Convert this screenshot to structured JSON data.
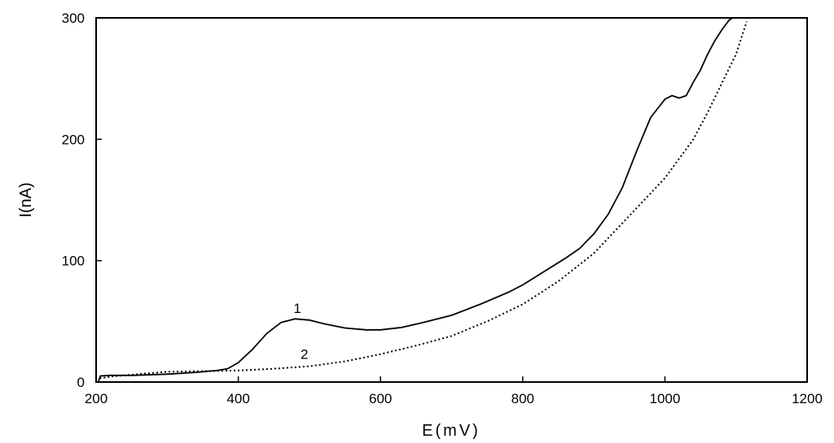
{
  "chart_data": {
    "type": "line",
    "xlabel": "E(mV)",
    "ylabel": "I(nA)",
    "xlim": [
      200,
      1200
    ],
    "ylim": [
      0,
      300
    ],
    "x_ticks": [
      200,
      400,
      600,
      800,
      1000,
      1200
    ],
    "y_ticks": [
      0,
      100,
      200,
      300
    ],
    "grid": false,
    "series": [
      {
        "name": "1",
        "style": "solid",
        "color": "#000000",
        "points": [
          [
            203,
            0
          ],
          [
            206,
            5
          ],
          [
            220,
            5.5
          ],
          [
            250,
            5.5
          ],
          [
            300,
            6.5
          ],
          [
            340,
            8
          ],
          [
            370,
            9.5
          ],
          [
            385,
            11
          ],
          [
            400,
            16
          ],
          [
            420,
            27
          ],
          [
            440,
            40
          ],
          [
            460,
            49
          ],
          [
            480,
            52
          ],
          [
            500,
            51
          ],
          [
            520,
            48
          ],
          [
            550,
            44.5
          ],
          [
            580,
            43
          ],
          [
            600,
            43
          ],
          [
            630,
            45
          ],
          [
            660,
            49
          ],
          [
            700,
            55
          ],
          [
            740,
            64
          ],
          [
            780,
            74
          ],
          [
            800,
            80
          ],
          [
            830,
            91
          ],
          [
            860,
            102
          ],
          [
            880,
            110
          ],
          [
            900,
            122
          ],
          [
            920,
            138
          ],
          [
            940,
            160
          ],
          [
            960,
            190
          ],
          [
            980,
            218
          ],
          [
            1000,
            233
          ],
          [
            1010,
            236
          ],
          [
            1020,
            234
          ],
          [
            1030,
            236
          ],
          [
            1040,
            247
          ],
          [
            1050,
            257
          ],
          [
            1060,
            270
          ],
          [
            1070,
            281
          ],
          [
            1080,
            290
          ],
          [
            1090,
            298
          ],
          [
            1095,
            300
          ]
        ]
      },
      {
        "name": "2",
        "style": "dotted",
        "color": "#000000",
        "points": [
          [
            205,
            3
          ],
          [
            220,
            4.5
          ],
          [
            250,
            6
          ],
          [
            280,
            7.5
          ],
          [
            300,
            8.5
          ],
          [
            350,
            9
          ],
          [
            400,
            9.5
          ],
          [
            450,
            11
          ],
          [
            500,
            13
          ],
          [
            550,
            17
          ],
          [
            600,
            23
          ],
          [
            650,
            30
          ],
          [
            700,
            38
          ],
          [
            750,
            50
          ],
          [
            800,
            64
          ],
          [
            850,
            83
          ],
          [
            900,
            106
          ],
          [
            950,
            137
          ],
          [
            1000,
            168
          ],
          [
            1020,
            184
          ],
          [
            1040,
            200
          ],
          [
            1060,
            222
          ],
          [
            1080,
            246
          ],
          [
            1100,
            270
          ],
          [
            1115,
            297
          ]
        ]
      }
    ],
    "annotations": [
      {
        "text": "1",
        "x": 483,
        "y": 57
      },
      {
        "text": "2",
        "x": 493,
        "y": 19
      }
    ]
  }
}
